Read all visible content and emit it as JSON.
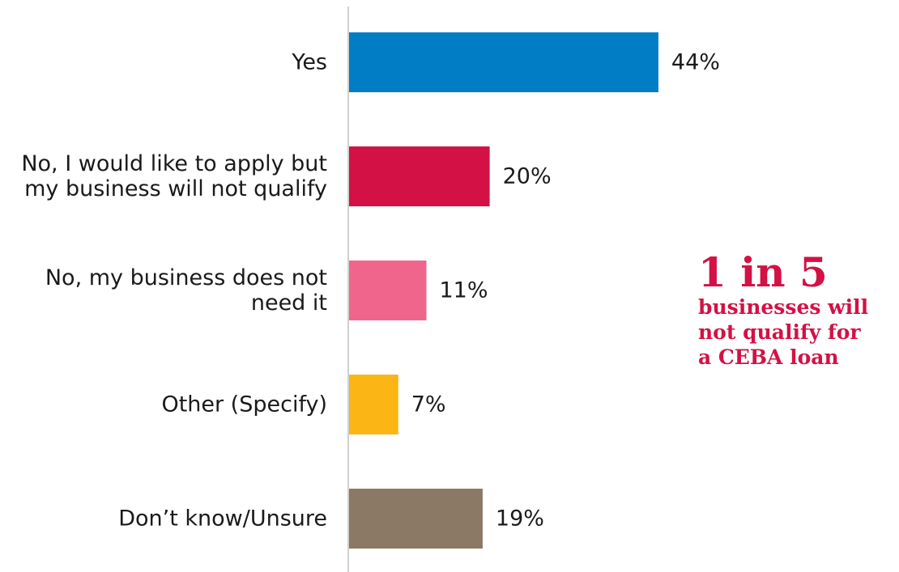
{
  "chart_data": {
    "type": "bar",
    "orientation": "horizontal",
    "categories": [
      [
        "Yes"
      ],
      [
        "No, I would like to apply but",
        "my business will not qualify"
      ],
      [
        "No, my business does not",
        "need it"
      ],
      [
        "Other (Specify)"
      ],
      [
        "Don’t know/Unsure"
      ]
    ],
    "values": [
      44,
      20,
      11,
      7,
      19
    ],
    "value_labels": [
      "44%",
      "20%",
      "11%",
      "7%",
      "19%"
    ],
    "colors": [
      "#007dc5",
      "#d31145",
      "#f0658b",
      "#fbb514",
      "#8b7865"
    ],
    "xlim": [
      0,
      50
    ],
    "grid": false
  },
  "callout": {
    "headline": "1 in 5",
    "lines": [
      "businesses will",
      "not qualify for",
      "a CEBA loan"
    ]
  }
}
